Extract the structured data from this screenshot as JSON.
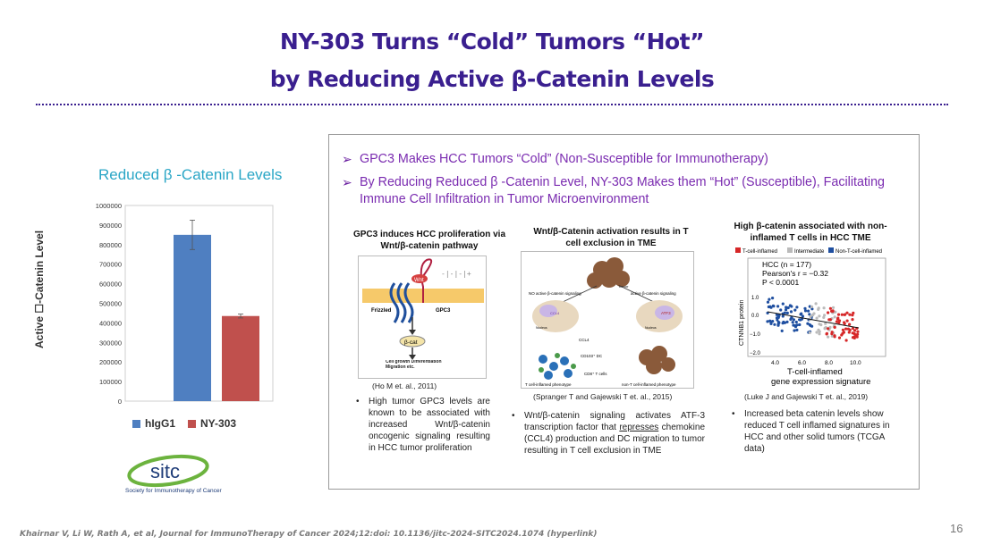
{
  "title": {
    "line1": "NY-303 Turns “Cold” Tumors “Hot”",
    "line2": "by Reducing Active β-Catenin Levels"
  },
  "left_chart": {
    "heading": "Reduced β -Catenin Levels"
  },
  "chart_data": {
    "type": "bar",
    "categories": [
      "hIgG1",
      "NY-303"
    ],
    "values": [
      850000,
      435000
    ],
    "error": [
      75000,
      10000
    ],
    "ylabel": "Active ☐-Catenin Level",
    "ylim": [
      0,
      1000000
    ],
    "yticks": [
      0,
      100000,
      200000,
      300000,
      400000,
      500000,
      600000,
      700000,
      800000,
      900000,
      1000000
    ],
    "colors": [
      "#4f7fc1",
      "#c0504d"
    ],
    "legend": [
      {
        "name": "hIgG1",
        "color": "#4f7fc1"
      },
      {
        "name": "NY-303",
        "color": "#c0504d"
      }
    ],
    "legend_position": "bottom"
  },
  "logo": {
    "text": "sitc",
    "subtitle": "Society for Immunotherapy of Cancer"
  },
  "panel": {
    "bullets": [
      "GPC3 Makes HCC Tumors “Cold” (Non-Susceptible for Immunotherapy)",
      "By Reducing Reduced β -Catenin Level, NY-303 Makes them “Hot” (Susceptible), Facilitating Immune Cell Infiltration in Tumor Microenvironment"
    ],
    "columns": [
      {
        "heading": "GPC3 induces HCC proliferation via Wnt/β-catenin pathway",
        "citation": "(Ho M et. al., 2011)",
        "desc": "High tumor GPC3 levels are known to be associated with increased Wnt/β-catenin oncogenic signaling resulting in HCC tumor proliferation",
        "fig_labels": {
          "wnt": "Wnt",
          "frizzled": "Frizzled",
          "gpc3": "GPC3",
          "bcat": "β-cat",
          "outcome": "Cell growth Differentiation Migration etc."
        }
      },
      {
        "heading": "Wnt/β-Catenin activation results in T cell exclusion in TME",
        "citation": "(Spranger T and Gajewski T et. al., 2015)",
        "desc_pre": "Wnt/β-catenin signaling activates ATF-3 transcription factor that ",
        "desc_u": "represses",
        "desc_post": " chemokine (CCL4) production and DC migration to tumor resulting in T cell exclusion in TME",
        "fig_labels": {
          "tumor": "Tumor",
          "no_active": "NO active β-catenin signaling",
          "active": "active β-catenin signaling",
          "nucleus1": "Nucleus",
          "nucleus2": "Nucleus",
          "atf3": "ATF3",
          "ccl4": "CCL4",
          "ccl4b": "CCL4",
          "dc": "CD103⁺ DC",
          "tcells": "CD8⁺ T cells",
          "inflamed": "T cell-inflamed phenotype",
          "noninflamed": "non-T cell-inflamed phenotype"
        }
      },
      {
        "heading": "High β-catenin associated with non-inflamed T cells in HCC TME",
        "citation": "(Luke J and Gajewski T et. al., 2019)",
        "desc": "Increased beta catenin levels show reduced T cell inflamed signatures in HCC and other solid tumors (TCGA data)",
        "fig_labels": {
          "legend1": "T-cell-inflamed",
          "legend2": "Intermediate",
          "legend3": "Non-T-cell-inflamed",
          "stat1": "HCC (n = 177)",
          "stat2": "Pearson's r = −0.32",
          "stat3": "P < 0.0001",
          "ylabel": "CTNNB1 protein",
          "xlabel1": "T-cell-inflamed",
          "xlabel2": "gene expression signature",
          "yt1": "1.0",
          "yt2": "0.0",
          "yt3": "−1.0",
          "yt4": "−2.0",
          "xt1": "4.0",
          "xt2": "6.0",
          "xt3": "8.0",
          "xt4": "10.0"
        }
      }
    ]
  },
  "footer": "Khairnar V, Li W, Rath A, et al, Journal for ImmunoTherapy of Cancer 2024;12:doi: 10.1136/jitc-2024-SITC2024.1074 (hyperlink)",
  "page_number": "16"
}
